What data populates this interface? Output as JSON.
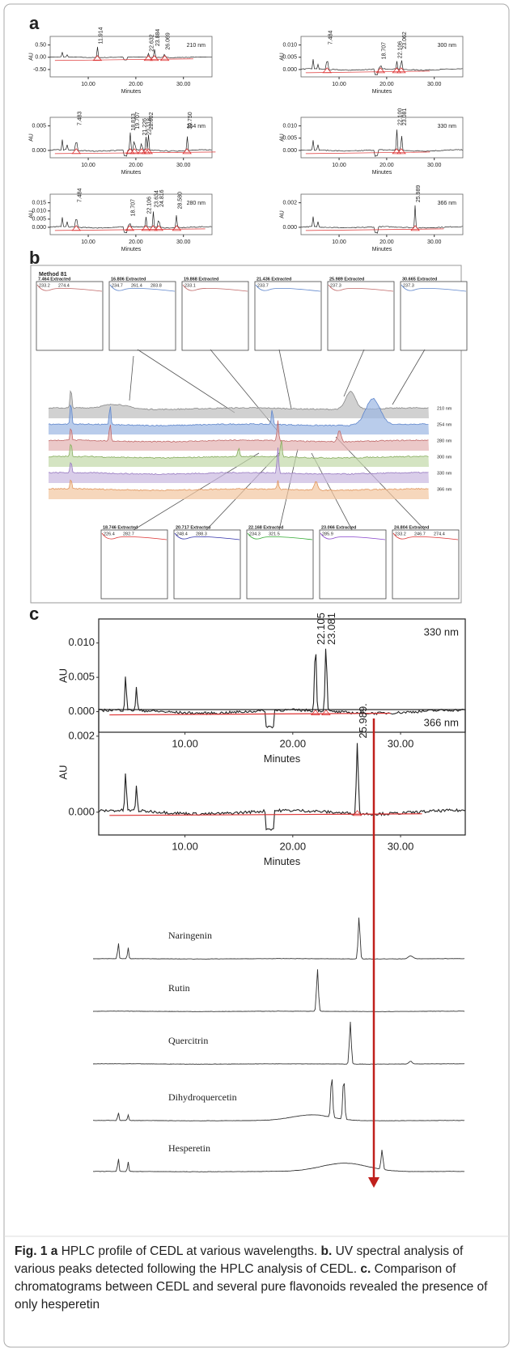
{
  "panel_a": {
    "label": "a",
    "plots": [
      {
        "wavelength": "210 nm",
        "y_label": "AU",
        "x_label": "Minutes",
        "yticks": [
          "0.50",
          "0.00",
          "-0.50"
        ],
        "xticks": [
          "10.00",
          "20.00",
          "30.00"
        ],
        "peaks": [
          "11.914",
          "22.632",
          "23.884",
          "26.069"
        ]
      },
      {
        "wavelength": "300 nm",
        "y_label": "AU",
        "x_label": "Minutes",
        "yticks": [
          "0.010",
          "0.005",
          "0.000"
        ],
        "xticks": [
          "10.00",
          "20.00",
          "30.00"
        ],
        "peaks": [
          "7.484",
          "18.707",
          "22.106",
          "23.062"
        ]
      },
      {
        "wavelength": "254 nm",
        "y_label": "AU",
        "x_label": "Minutes",
        "yticks": [
          "0.005",
          "0.000"
        ],
        "xticks": [
          "10.00",
          "20.00",
          "30.00"
        ],
        "peaks": [
          "7.483",
          "18.813",
          "19.707",
          "21.226",
          "22.118",
          "22.602",
          "30.750"
        ]
      },
      {
        "wavelength": "330 nm",
        "y_label": "AU",
        "x_label": "Minutes",
        "yticks": [
          "0.010",
          "0.005",
          "0.000"
        ],
        "xticks": [
          "10.00",
          "20.00",
          "30.00"
        ],
        "peaks": [
          "22.100",
          "23.081"
        ]
      },
      {
        "wavelength": "280 nm",
        "y_label": "AU",
        "x_label": "Minutes",
        "yticks": [
          "0.015",
          "0.010",
          "0.005",
          "0.000"
        ],
        "xticks": [
          "10.00",
          "20.00",
          "30.00"
        ],
        "peaks": [
          "7.484",
          "18.707",
          "22.106",
          "23.634",
          "24.816",
          "28.580"
        ]
      },
      {
        "wavelength": "366 nm",
        "y_label": "AU",
        "x_label": "Minutes",
        "yticks": [
          "0.002",
          "0.000"
        ],
        "xticks": [
          "10.00",
          "20.00",
          "30.00"
        ],
        "peaks": [
          "25.989"
        ]
      }
    ]
  },
  "panel_b": {
    "label": "b",
    "method": "Method 81",
    "top_insets": [
      {
        "title": "7.464 Extracted",
        "values": [
          "233.2",
          "274.4"
        ]
      },
      {
        "title": "16.806 Extracted",
        "values": [
          "234.7",
          "261.4",
          "283.8"
        ]
      },
      {
        "title": "19.868 Extracted",
        "values": [
          "233.1"
        ]
      },
      {
        "title": "21.436 Extracted",
        "values": [
          "233.7"
        ]
      },
      {
        "title": "25.989 Extracted",
        "values": [
          "237.3"
        ]
      },
      {
        "title": "30.665 Extracted",
        "values": [
          "237.3"
        ]
      }
    ],
    "bottom_insets": [
      {
        "title": "18.746 Extracted",
        "values": [
          "226.4",
          "282.7"
        ]
      },
      {
        "title": "20.717 Extracted",
        "values": [
          "248.4",
          "288.3"
        ]
      },
      {
        "title": "22.168 Extracted",
        "values": [
          "234.3",
          "321.5"
        ]
      },
      {
        "title": "23.066 Extracted",
        "values": [
          "285.9"
        ]
      },
      {
        "title": "24.804 Extracted",
        "values": [
          "233.2",
          "246.7",
          "274.4"
        ]
      }
    ],
    "traces": [
      "210 nm",
      "254 nm",
      "280 nm",
      "300 nm",
      "330 nm",
      "366 nm"
    ]
  },
  "panel_c": {
    "label": "c",
    "plots": [
      {
        "wavelength": "330 nm",
        "y_label": "AU",
        "x_label": "Minutes",
        "yticks": [
          "0.010",
          "0.005",
          "0.000"
        ],
        "xticks": [
          "10.00",
          "20.00",
          "30.00"
        ],
        "peaks": [
          "22.105",
          "23.081"
        ]
      },
      {
        "wavelength": "366 nm",
        "y_label": "AU",
        "x_label": "Minutes",
        "yticks": [
          "0.002",
          "0.000"
        ],
        "xticks": [
          "10.00",
          "20.00",
          "30.00"
        ],
        "peaks": [
          "25.989."
        ]
      }
    ],
    "standards": [
      "Naringenin",
      "Rutin",
      "Quercitrin",
      "Dihydroquercetin",
      "Hesperetin"
    ]
  },
  "caption": {
    "figure": "Fig. 1",
    "parts": [
      {
        "label": "a",
        "text": "HPLC profile of CEDL at various wavelengths."
      },
      {
        "label": "b.",
        "text": "UV spectral analysis of various peaks detected following the HPLC analysis of CEDL."
      },
      {
        "label": "c.",
        "text": "Comparison of chromatograms between CEDL and several pure flavonoids revealed the presence of only hesperetin"
      }
    ]
  }
}
